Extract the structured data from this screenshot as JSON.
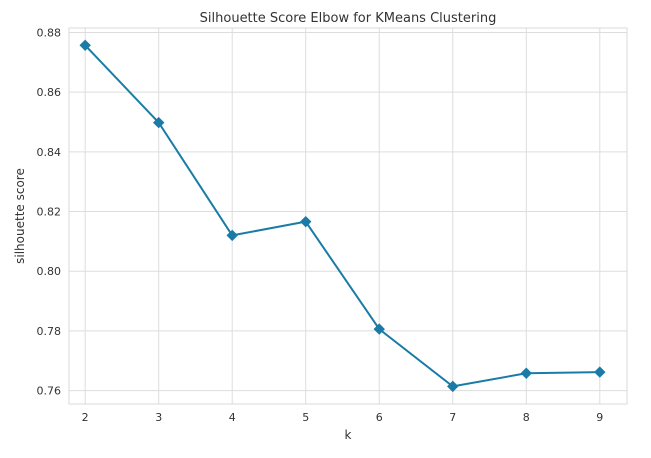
{
  "chart_data": {
    "type": "line",
    "title": "Silhouette Score Elbow for KMeans Clustering",
    "xlabel": "k",
    "ylabel": "silhouette score",
    "x": [
      2,
      3,
      4,
      5,
      6,
      7,
      8,
      9
    ],
    "x_ticks": [
      "2",
      "3",
      "4",
      "5",
      "6",
      "7",
      "8",
      "9"
    ],
    "y_ticks": [
      "0.76",
      "0.78",
      "0.80",
      "0.82",
      "0.84",
      "0.86",
      "0.88"
    ],
    "y_tick_values": [
      0.76,
      0.78,
      0.8,
      0.82,
      0.84,
      0.86,
      0.88
    ],
    "xlim": [
      1.78,
      9.37
    ],
    "ylim": [
      0.7555,
      0.8815
    ],
    "grid": true,
    "series": [
      {
        "values": [
          0.8757,
          0.8498,
          0.812,
          0.8166,
          0.7806,
          0.7614,
          0.7658,
          0.7662
        ],
        "color": "#1a7ca6",
        "marker": "diamond"
      }
    ]
  }
}
